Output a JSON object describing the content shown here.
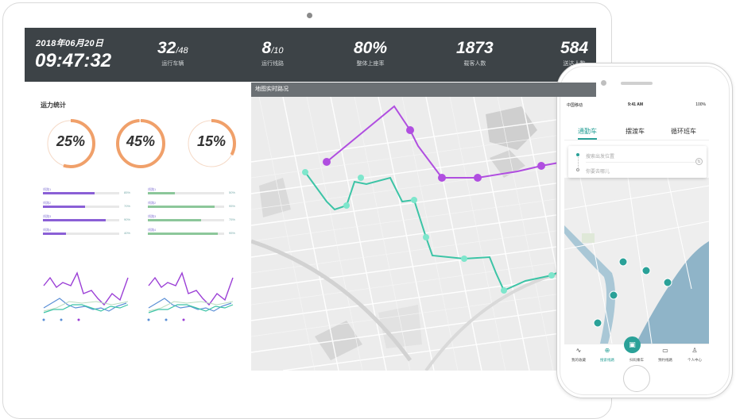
{
  "dashboard": {
    "date": "2018年06月20日",
    "time": "09:47:32",
    "stats": [
      {
        "value": "32",
        "suffix": "/48",
        "label": "运行车辆"
      },
      {
        "value": "8",
        "suffix": "/10",
        "label": "运行线路"
      },
      {
        "value": "80%",
        "suffix": "",
        "label": "整体上座率"
      },
      {
        "value": "1873",
        "suffix": "",
        "label": "载客人数"
      },
      {
        "value": "584",
        "suffix": "",
        "label": "送达人数"
      }
    ],
    "panel_title": "运力统计",
    "rings": [
      {
        "label": "25%",
        "value": 0.25
      },
      {
        "label": "45%",
        "value": 0.45
      },
      {
        "label": "15%",
        "value": 0.15
      }
    ],
    "bars_left": [
      {
        "label": "线路1",
        "value": 0.68,
        "pct": "85%"
      },
      {
        "label": "线路2",
        "value": 0.55,
        "pct": "70%"
      },
      {
        "label": "线路3",
        "value": 0.82,
        "pct": "90%"
      },
      {
        "label": "线路4",
        "value": 0.3,
        "pct": "40%"
      }
    ],
    "bars_right": [
      {
        "label": "线路1",
        "value": 0.35,
        "pct": "50%"
      },
      {
        "label": "线路2",
        "value": 0.88,
        "pct": "95%"
      },
      {
        "label": "线路3",
        "value": 0.7,
        "pct": "75%"
      },
      {
        "label": "线路4",
        "value": 0.92,
        "pct": "95%"
      }
    ],
    "map_title": "地图实时路况",
    "colors": {
      "orange": "#f0a06a",
      "purple": "#9b3fd6",
      "teal": "#3cc4a6",
      "blue": "#5b8fd6",
      "green": "#8cc79a",
      "topbar": "#3d4347"
    }
  },
  "phone": {
    "status": {
      "carrier": "中国移动",
      "clock": "9:41 AM",
      "battery": "100%"
    },
    "tabs": [
      "通勤车",
      "摆渡车",
      "循环班车"
    ],
    "active_tab": 0,
    "from_placeholder": "搜索出发位置",
    "to_placeholder": "你要去哪儿",
    "nav": [
      {
        "label": "我的收藏",
        "icon": "pulse-icon"
      },
      {
        "label": "搜索线路",
        "icon": "target-icon"
      },
      {
        "label": "扫码乘车",
        "icon": "scan-icon"
      },
      {
        "label": "预约线路",
        "icon": "calendar-icon"
      },
      {
        "label": "个人中心",
        "icon": "person-icon"
      }
    ],
    "active_nav": 1
  }
}
